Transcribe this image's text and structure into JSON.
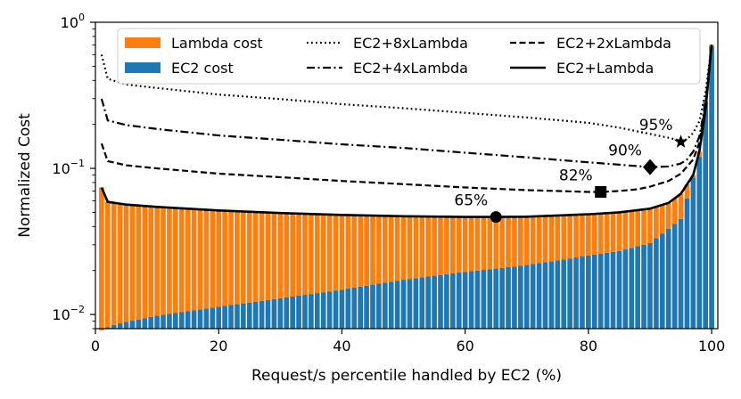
{
  "chart_data": {
    "type": "bar",
    "xlabel": "Request/s percentile handled by EC2 (%)",
    "ylabel": "Normalized Cost",
    "xlim": [
      0,
      101
    ],
    "ylim": [
      0.008,
      1.0
    ],
    "yscale": "log",
    "x_ticks": [
      {
        "value": 0,
        "label": "0"
      },
      {
        "value": 20,
        "label": "20"
      },
      {
        "value": 40,
        "label": "40"
      },
      {
        "value": 60,
        "label": "60"
      },
      {
        "value": 80,
        "label": "80"
      },
      {
        "value": 100,
        "label": "100"
      }
    ],
    "y_ticks": [
      {
        "value": 0.01,
        "base": "10",
        "exp": "−2"
      },
      {
        "value": 0.1,
        "base": "10",
        "exp": "−1"
      },
      {
        "value": 1.0,
        "base": "10",
        "exp": "0"
      }
    ],
    "colors": {
      "lambda": "#ff7f0e",
      "ec2": "#1f77b4",
      "line": "#000000"
    },
    "bars": {
      "percentiles": [
        1,
        100
      ],
      "ec2_cost_points": [
        [
          1,
          0.0078
        ],
        [
          2,
          0.0082
        ],
        [
          3,
          0.0085
        ],
        [
          5,
          0.0089
        ],
        [
          10,
          0.0098
        ],
        [
          20,
          0.0113
        ],
        [
          30,
          0.0129
        ],
        [
          40,
          0.0148
        ],
        [
          50,
          0.0173
        ],
        [
          60,
          0.0196
        ],
        [
          65,
          0.0206
        ],
        [
          70,
          0.0218
        ],
        [
          80,
          0.0253
        ],
        [
          85,
          0.0272
        ],
        [
          90,
          0.0308
        ],
        [
          95,
          0.045
        ],
        [
          98,
          0.12
        ],
        [
          100,
          0.68
        ]
      ],
      "total_cost_points": [
        [
          1,
          0.074
        ],
        [
          2,
          0.059
        ],
        [
          5,
          0.0565
        ],
        [
          10,
          0.0545
        ],
        [
          20,
          0.0515
        ],
        [
          30,
          0.0495
        ],
        [
          40,
          0.048
        ],
        [
          50,
          0.047
        ],
        [
          60,
          0.0465
        ],
        [
          65,
          0.0465
        ],
        [
          70,
          0.0467
        ],
        [
          80,
          0.0485
        ],
        [
          85,
          0.05
        ],
        [
          90,
          0.053
        ],
        [
          93,
          0.058
        ],
        [
          95,
          0.067
        ],
        [
          97,
          0.09
        ],
        [
          98,
          0.13
        ],
        [
          99,
          0.25
        ],
        [
          100,
          0.7
        ]
      ]
    },
    "series": [
      {
        "name": "EC2+8xLambda",
        "dash": "dotted",
        "points": [
          [
            1,
            0.6
          ],
          [
            2,
            0.41
          ],
          [
            5,
            0.375
          ],
          [
            10,
            0.355
          ],
          [
            20,
            0.32
          ],
          [
            30,
            0.298
          ],
          [
            40,
            0.275
          ],
          [
            50,
            0.258
          ],
          [
            60,
            0.24
          ],
          [
            70,
            0.223
          ],
          [
            80,
            0.205
          ],
          [
            85,
            0.19
          ],
          [
            90,
            0.172
          ],
          [
            93,
            0.162
          ],
          [
            95,
            0.155
          ],
          [
            96,
            0.158
          ],
          [
            97,
            0.175
          ],
          [
            98,
            0.21
          ],
          [
            99,
            0.33
          ],
          [
            100,
            0.7
          ]
        ]
      },
      {
        "name": "EC2+4xLambda",
        "dash": "dashdot",
        "points": [
          [
            1,
            0.3
          ],
          [
            2,
            0.213
          ],
          [
            5,
            0.198
          ],
          [
            10,
            0.186
          ],
          [
            20,
            0.168
          ],
          [
            30,
            0.157
          ],
          [
            40,
            0.146
          ],
          [
            50,
            0.138
          ],
          [
            60,
            0.128
          ],
          [
            70,
            0.119
          ],
          [
            80,
            0.11
          ],
          [
            85,
            0.106
          ],
          [
            90,
            0.102
          ],
          [
            93,
            0.103
          ],
          [
            95,
            0.108
          ],
          [
            96,
            0.115
          ],
          [
            97,
            0.13
          ],
          [
            98,
            0.165
          ],
          [
            99,
            0.28
          ],
          [
            100,
            0.7
          ]
        ]
      },
      {
        "name": "EC2+2xLambda",
        "dash": "dashed",
        "points": [
          [
            1,
            0.148
          ],
          [
            2,
            0.112
          ],
          [
            5,
            0.105
          ],
          [
            10,
            0.1
          ],
          [
            20,
            0.092
          ],
          [
            30,
            0.087
          ],
          [
            40,
            0.082
          ],
          [
            50,
            0.078
          ],
          [
            60,
            0.074
          ],
          [
            70,
            0.071
          ],
          [
            80,
            0.069
          ],
          [
            82,
            0.069
          ],
          [
            85,
            0.07
          ],
          [
            88,
            0.072
          ],
          [
            90,
            0.075
          ],
          [
            93,
            0.082
          ],
          [
            95,
            0.092
          ],
          [
            97,
            0.115
          ],
          [
            98,
            0.15
          ],
          [
            99,
            0.27
          ],
          [
            100,
            0.7
          ]
        ]
      },
      {
        "name": "EC2+Lambda",
        "dash": "solid",
        "points": [
          [
            1,
            0.074
          ],
          [
            2,
            0.059
          ],
          [
            5,
            0.0565
          ],
          [
            10,
            0.0545
          ],
          [
            20,
            0.0515
          ],
          [
            30,
            0.0495
          ],
          [
            40,
            0.048
          ],
          [
            50,
            0.047
          ],
          [
            60,
            0.0465
          ],
          [
            65,
            0.0465
          ],
          [
            70,
            0.0467
          ],
          [
            80,
            0.0485
          ],
          [
            85,
            0.05
          ],
          [
            90,
            0.053
          ],
          [
            93,
            0.058
          ],
          [
            95,
            0.067
          ],
          [
            97,
            0.09
          ],
          [
            98,
            0.13
          ],
          [
            99,
            0.25
          ],
          [
            100,
            0.7
          ]
        ]
      }
    ],
    "annotations": [
      {
        "x": 65,
        "y": 0.0465,
        "marker": "circle",
        "label": "65%"
      },
      {
        "x": 82,
        "y": 0.069,
        "marker": "square",
        "label": "82%"
      },
      {
        "x": 90,
        "y": 0.102,
        "marker": "diamond",
        "label": "90%"
      },
      {
        "x": 95,
        "y": 0.152,
        "marker": "star",
        "label": "95%"
      }
    ],
    "legend": {
      "placement": "top",
      "entries": [
        {
          "label": "Lambda cost",
          "kind": "patch",
          "color": "#ff7f0e"
        },
        {
          "label": "EC2+8xLambda",
          "kind": "line",
          "dash": "dotted"
        },
        {
          "label": "EC2+2xLambda",
          "kind": "line",
          "dash": "dashed"
        },
        {
          "label": "EC2 cost",
          "kind": "patch",
          "color": "#1f77b4"
        },
        {
          "label": "EC2+4xLambda",
          "kind": "line",
          "dash": "dashdot"
        },
        {
          "label": "EC2+Lambda",
          "kind": "line",
          "dash": "solid"
        }
      ]
    }
  }
}
